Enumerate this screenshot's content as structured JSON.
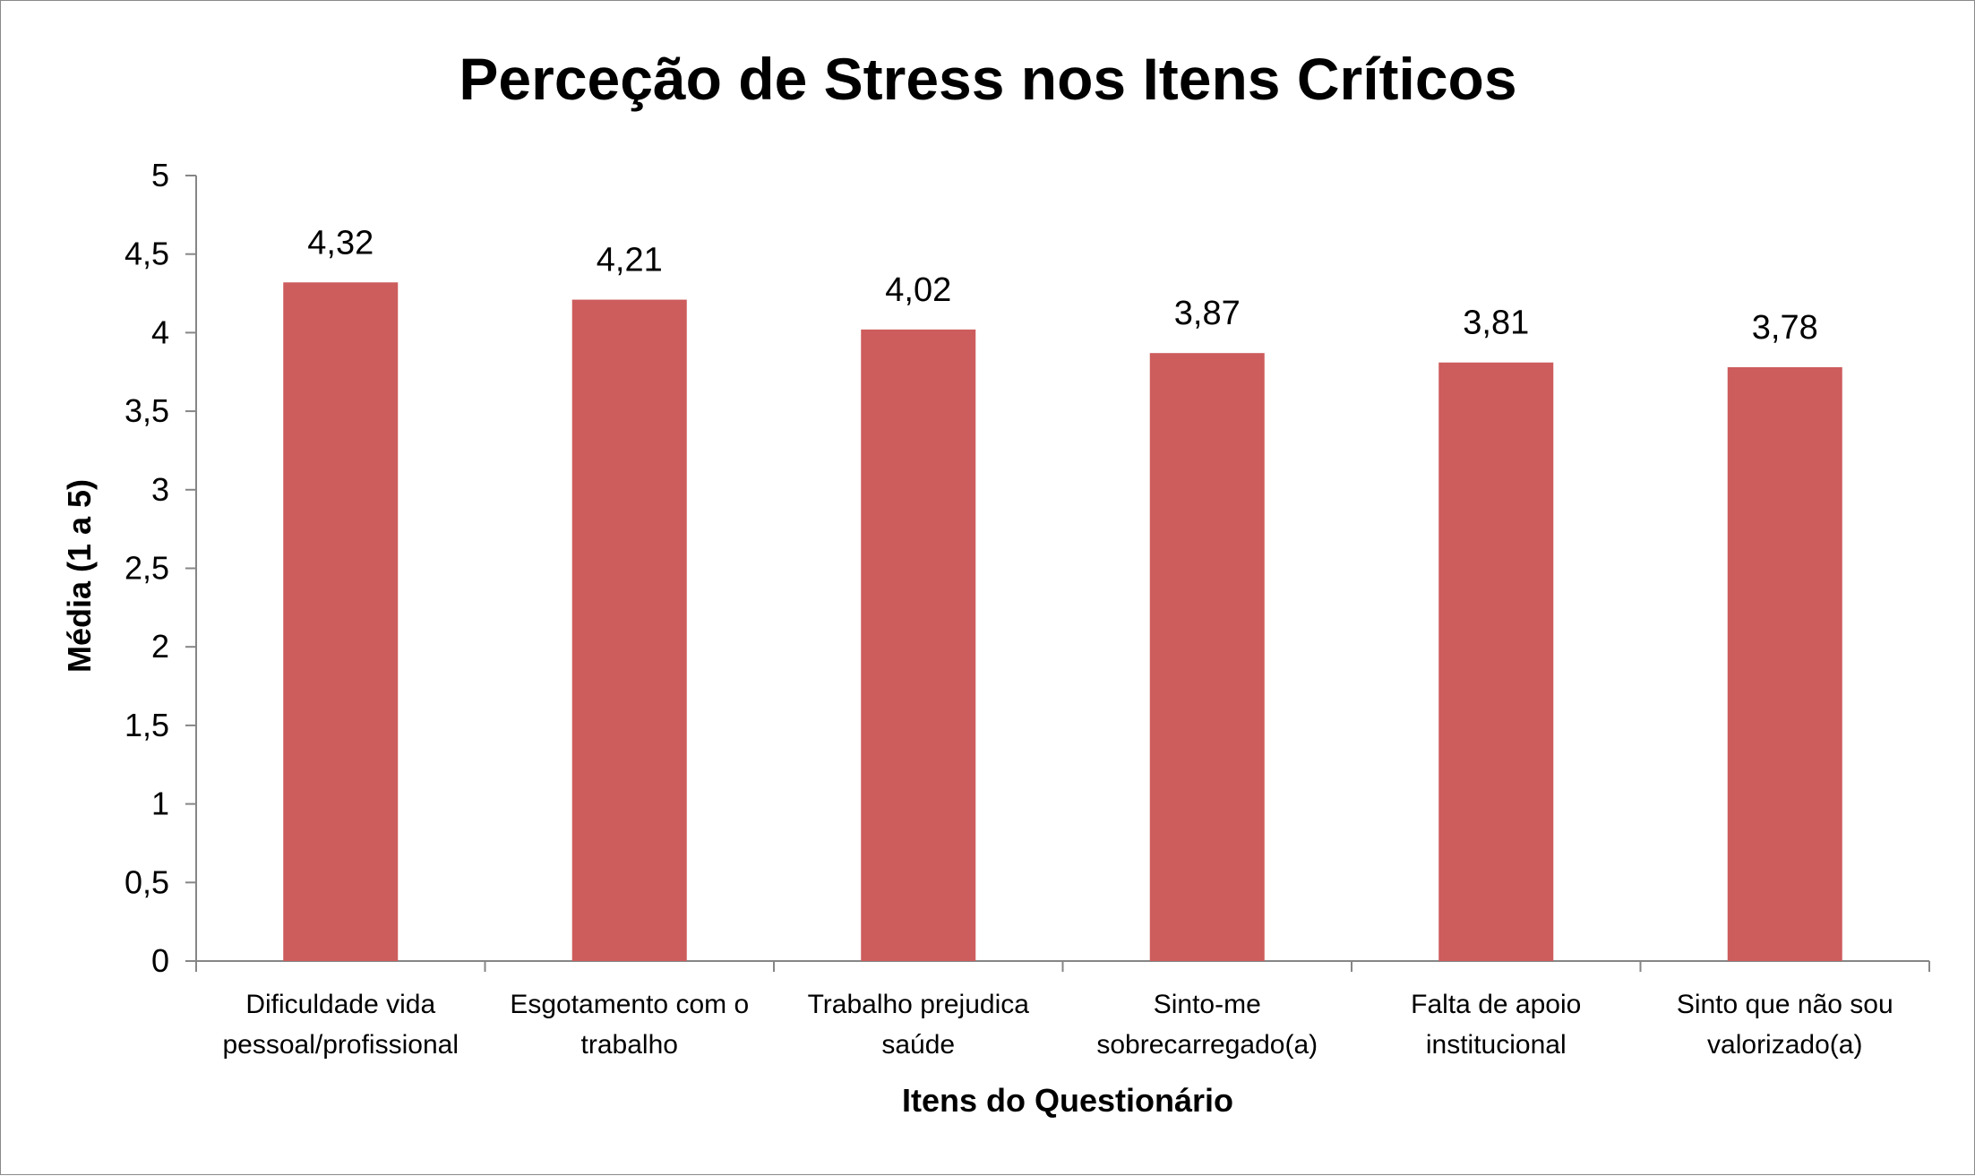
{
  "chart_data": {
    "type": "bar",
    "title": "Perceção de Stress nos Itens Críticos",
    "xlabel": "Itens do Questionário",
    "ylabel": "Média (1 a 5)",
    "categories": [
      [
        "Dificuldade vida",
        "pessoal/profissional"
      ],
      [
        "Esgotamento com o",
        "trabalho"
      ],
      [
        "Trabalho prejudica",
        "saúde"
      ],
      [
        "Sinto-me",
        "sobrecarregado(a)"
      ],
      [
        "Falta de apoio",
        "institucional"
      ],
      [
        "Sinto que não sou",
        "valorizado(a)"
      ]
    ],
    "values": [
      4.32,
      4.21,
      4.02,
      3.87,
      3.81,
      3.78
    ],
    "data_labels": [
      "4,32",
      "4,21",
      "4,02",
      "3,87",
      "3,81",
      "3,78"
    ],
    "ylim": [
      0,
      5
    ],
    "yticks": [
      "0",
      "0,5",
      "1",
      "1,5",
      "2",
      "2,5",
      "3",
      "3,5",
      "4",
      "4,5",
      "5"
    ],
    "grid": false,
    "legend": "none",
    "bar_color": "#cd5c5c"
  }
}
